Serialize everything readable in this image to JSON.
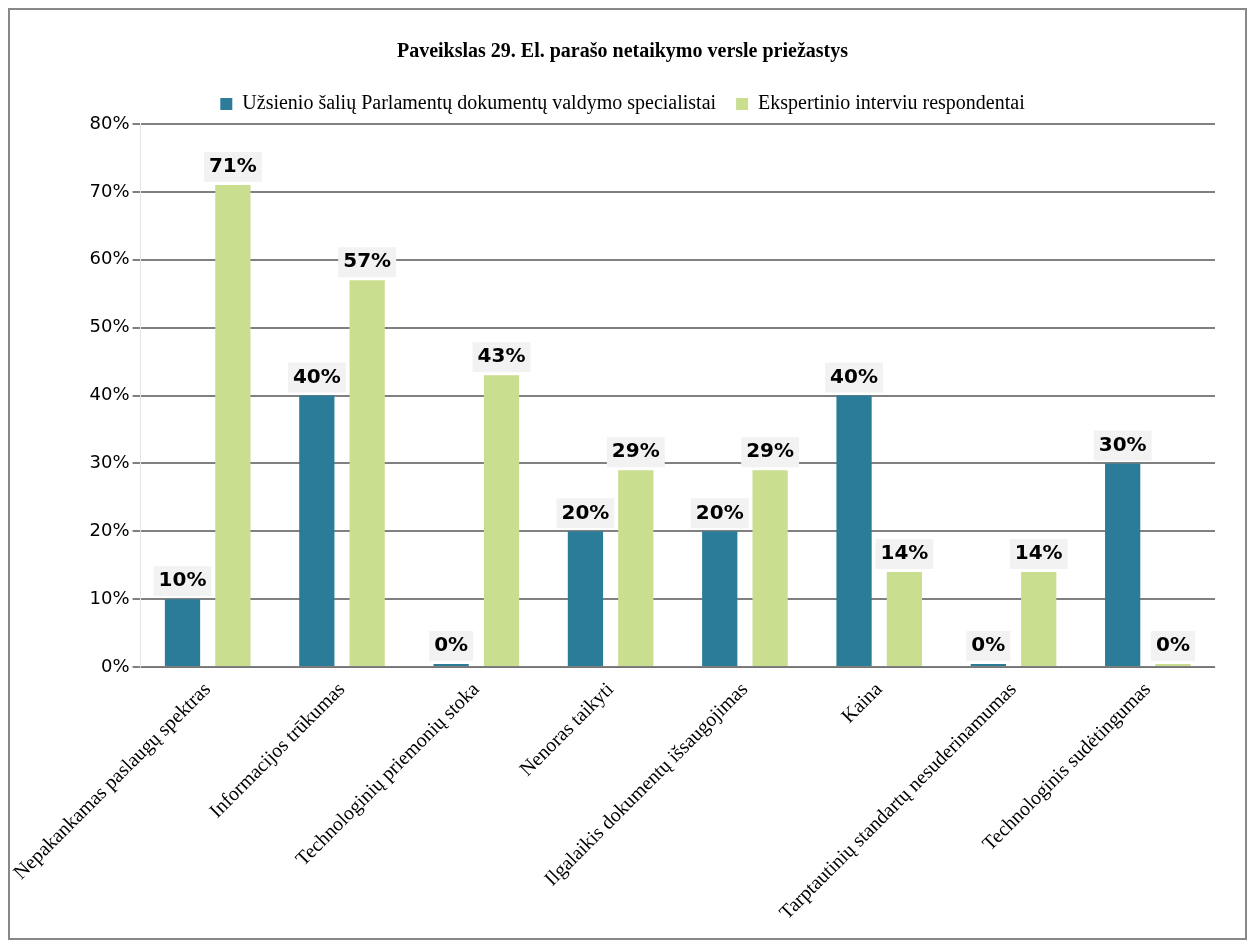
{
  "chart_data": {
    "type": "bar",
    "title": "Paveikslas 29. El. parašo netaikymo versle priežastys",
    "categories": [
      "Nepakankamas paslaugų spektras",
      "Informacijos trūkumas",
      "Technologinių priemonių stoka",
      "Nenoras taikyti",
      "Ilgalaikis dokumentų išsaugojimas",
      "Kaina",
      "Tarptautinių standartų nesuderinamumas",
      "Technologinis sudėtingumas"
    ],
    "series": [
      {
        "name": "Užsienio šalių Parlamentų dokumentų valdymo specialistai",
        "color": "#2b7c99",
        "values": [
          10,
          40,
          0,
          20,
          20,
          40,
          0,
          30
        ],
        "value_labels": [
          "10%",
          "40%",
          "0%",
          "20%",
          "20%",
          "40%",
          "0%",
          "30%"
        ]
      },
      {
        "name": "Ekspertinio interviu respondentai",
        "color": "#c9de8e",
        "values": [
          71,
          57,
          43,
          29,
          29,
          14,
          14,
          0
        ],
        "value_labels": [
          "71%",
          "57%",
          "43%",
          "29%",
          "29%",
          "14%",
          "14%",
          "0%"
        ]
      }
    ],
    "ylim": [
      0,
      80
    ],
    "yticks": [
      {
        "value": 0,
        "label": "0%"
      },
      {
        "value": 10,
        "label": "10%"
      },
      {
        "value": 20,
        "label": "20%"
      },
      {
        "value": 30,
        "label": "30%"
      },
      {
        "value": 40,
        "label": "40%"
      },
      {
        "value": 50,
        "label": "50%"
      },
      {
        "value": 60,
        "label": "60%"
      },
      {
        "value": 70,
        "label": "70%"
      },
      {
        "value": 80,
        "label": "80%"
      }
    ],
    "grid": "y",
    "legend": "top"
  }
}
